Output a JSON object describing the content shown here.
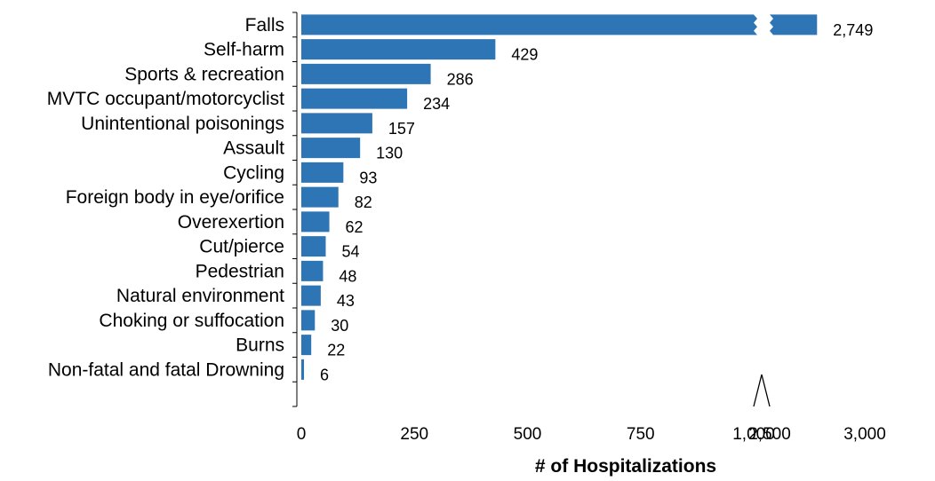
{
  "chart_data": {
    "type": "bar",
    "orientation": "horizontal",
    "xlabel": "# of Hospitalizations",
    "bar_color": "#2e75b6",
    "axis_break": true,
    "xlim_lower_segment": [
      0,
      1000
    ],
    "xlim_upper_segment": [
      2500,
      3000
    ],
    "x_ticks": [
      0,
      250,
      500,
      750,
      1000,
      2500,
      3000
    ],
    "x_tick_labels": [
      "0",
      "250",
      "500",
      "750",
      "1,000",
      "2,500",
      "3,000"
    ],
    "categories": [
      "Falls",
      "Self-harm",
      "Sports & recreation",
      "MVTC occupant/motorcyclist",
      "Unintentional poisonings",
      "Assault",
      "Cycling",
      "Foreign body in eye/orifice",
      "Overexertion",
      "Cut/pierce",
      "Pedestrian",
      "Natural environment",
      "Choking or suffocation",
      "Burns",
      "Non-fatal and fatal Drowning"
    ],
    "values": [
      2749,
      429,
      286,
      234,
      157,
      130,
      93,
      82,
      62,
      54,
      48,
      43,
      30,
      22,
      6
    ],
    "value_labels": [
      "2,749",
      "429",
      "286",
      "234",
      "157",
      "130",
      "93",
      "82",
      "62",
      "54",
      "48",
      "43",
      "30",
      "22",
      "6"
    ]
  }
}
